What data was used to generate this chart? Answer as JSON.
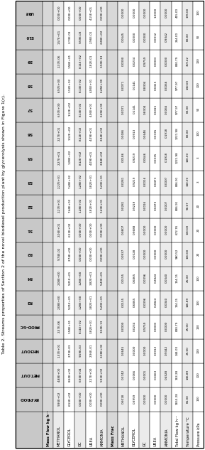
{
  "title": "Table 2. Streams properties of Section 2 of the novel biodiesel production plant by glycerolysis shown in Figure 1(c).",
  "columns": [
    "BY-PROD",
    "MET.OUT",
    "NH3OUT",
    "PROD-GC",
    "R3",
    "R4",
    "R2",
    "S1",
    "S2",
    "S3",
    "S5",
    "S6",
    "S7",
    "S8",
    "S9",
    "S10",
    "URE"
  ],
  "row_labels": [
    "Mass Flow kg h⁻¹",
    "METHANOL",
    "GLYCEROL",
    "GC",
    "UREA",
    "AMMONIA",
    "Mass Frac",
    "METHANOL",
    "GLYCEROL",
    "GC",
    "UREA",
    "AMMONIA",
    "Total Flow kg h⁻¹",
    "Temperature °C",
    "Pressure kPa"
  ],
  "data": [
    [
      "",
      "",
      "",
      "",
      "",
      "",
      "",
      "",
      "",
      "",
      "",
      "",
      "",
      "",
      "",
      "",
      ""
    ],
    [
      "9.95E+02",
      "4.88E+00",
      "1.57E+01",
      "2.37E-06",
      "2.08E+00",
      "2.08E+00",
      "9.74E-02",
      "2.06E+01",
      "2.27E+01",
      "2.27E+01",
      "2.27E+01",
      "2.27E+01",
      "6.97E+00",
      "6.97E+00",
      "2.37E-06",
      "1.57E+01",
      "0.00E+00"
    ],
    [
      "6.55E+02",
      "8.60E+02",
      "2.73E-03",
      "1.94E+01",
      "9.21E+01",
      "9.21E+01",
      "2.74E+00",
      "6.52E+02",
      "7.44E+02",
      "7.44E+02",
      "1.28E+02",
      "1.12E+02",
      "1.12E+02",
      "1.12E+02",
      "1.94E+01",
      "2.73E-03",
      "0.00E+00"
    ],
    [
      "0.00E+00",
      "6.93E+04",
      "9.59E-03",
      "8.11E+02",
      "1.28E+00",
      "1.28E+00",
      "0.00E+00",
      "0.00E+00",
      "1.28E+02",
      "1.28E+02",
      "8.12E+02",
      "8.12E+02",
      "8.13E+02",
      "8.13E+02",
      "8.11E+02",
      "9.59E-03",
      "0.00E+00"
    ],
    [
      "0.00E+00",
      "2.17E+00",
      "2.96E-01",
      "3.82E+01",
      "3.82E+01",
      "3.82E+01",
      "0.00E+00",
      "0.00E+00",
      "3.82E+01",
      "3.82E+01",
      "4.09E+01",
      "4.09E+01",
      "4.06E+01",
      "4.06E+01",
      "2.82E-01",
      "2.96E-01",
      "4.15E+01"
    ],
    [
      "0.00E+00",
      "5.91E+02",
      "2.28E+02",
      "3.50E-13",
      "5.43E+01",
      "5.43E+01",
      "0.00E+00",
      "0.00E+00",
      "5.43E+01",
      "5.43E+01",
      "2.34E+02",
      "2.34E+02",
      "6.45E+00",
      "6.45E+00",
      "3.50E-13",
      "2.28E+02",
      "0.00E+00"
    ],
    [
      "",
      "",
      "",
      "",
      "",
      "",
      "",
      "",
      "",
      "",
      "",
      "",
      "",
      "",
      "",
      "",
      ""
    ],
    [
      "0.6018",
      "0.3742",
      "0.0645",
      "0.0000",
      "0.0155",
      "0.0155",
      "0.0937",
      "0.0807",
      "0.0281",
      "0.0281",
      "0.0186",
      "0.0186",
      "0.0071",
      "0.0071",
      "0.0000",
      "0.0645",
      "0.0000"
    ],
    [
      "0.3959",
      "0.0066",
      "0.0000",
      "0.0234",
      "0.6865",
      "0.6865",
      "0.0028",
      "0.9688",
      "0.9219",
      "0.9219",
      "0.9219",
      "0.0913",
      "0.1141",
      "0.1141",
      "0.0234",
      "0.0000",
      "0.0000"
    ],
    [
      "0.0000",
      "0.0001",
      "0.0000",
      "0.9759",
      "0.0096",
      "0.0096",
      "0.0000",
      "0.0000",
      "0.0016",
      "0.0016",
      "0.0646",
      "0.0646",
      "0.8304",
      "0.8304",
      "0.9759",
      "0.0000",
      "0.0000"
    ],
    [
      "0.0000",
      "0.1663",
      "0.0012",
      "0.0003",
      "0.2844",
      "0.2844",
      "0.0000",
      "0.0000",
      "0.0473",
      "0.0473",
      "0.0335",
      "0.0335",
      "0.0415",
      "0.0415",
      "0.0003",
      "0.0012",
      "1.0000"
    ],
    [
      "0.0000",
      "0.4528",
      "0.9342",
      "0.0000",
      "0.0040",
      "0.0040",
      "0.0000",
      "0.0000",
      "0.0007",
      "0.0007",
      "0.1918",
      "0.1918",
      "0.0066",
      "0.0066",
      "0.0000",
      "0.9342",
      "0.0000"
    ],
    [
      "1653.28",
      "163.28",
      "244.00",
      "830.79",
      "134.15",
      "134.15",
      "980.52",
      "672.76",
      "806.91",
      "806.91",
      "1221.98",
      "1221.98",
      "977.97",
      "977.97",
      "830.79",
      "244.00",
      "415.00"
    ],
    [
      "65.00",
      "146.89",
      "25.00",
      "25.00",
      "146.89",
      "25.00",
      "100.00",
      "100.00",
      "90.67",
      "140.00",
      "140.00",
      "60.00",
      "60.00",
      "140.00",
      "319.42",
      "60.00",
      "178.00"
    ],
    [
      "100",
      "100",
      "100",
      "100",
      "100",
      "100",
      "20",
      "20",
      "20",
      "3",
      "3",
      "100",
      "50",
      "100",
      "100",
      "50",
      "100"
    ]
  ],
  "header_bg": "#c8c8c8",
  "alt_row_bg": "#ebebeb",
  "normal_row_bg": "#ffffff",
  "section_header_bg": "#d8d8d8",
  "cell_fontsize": 3.8,
  "header_fontsize": 4.0
}
